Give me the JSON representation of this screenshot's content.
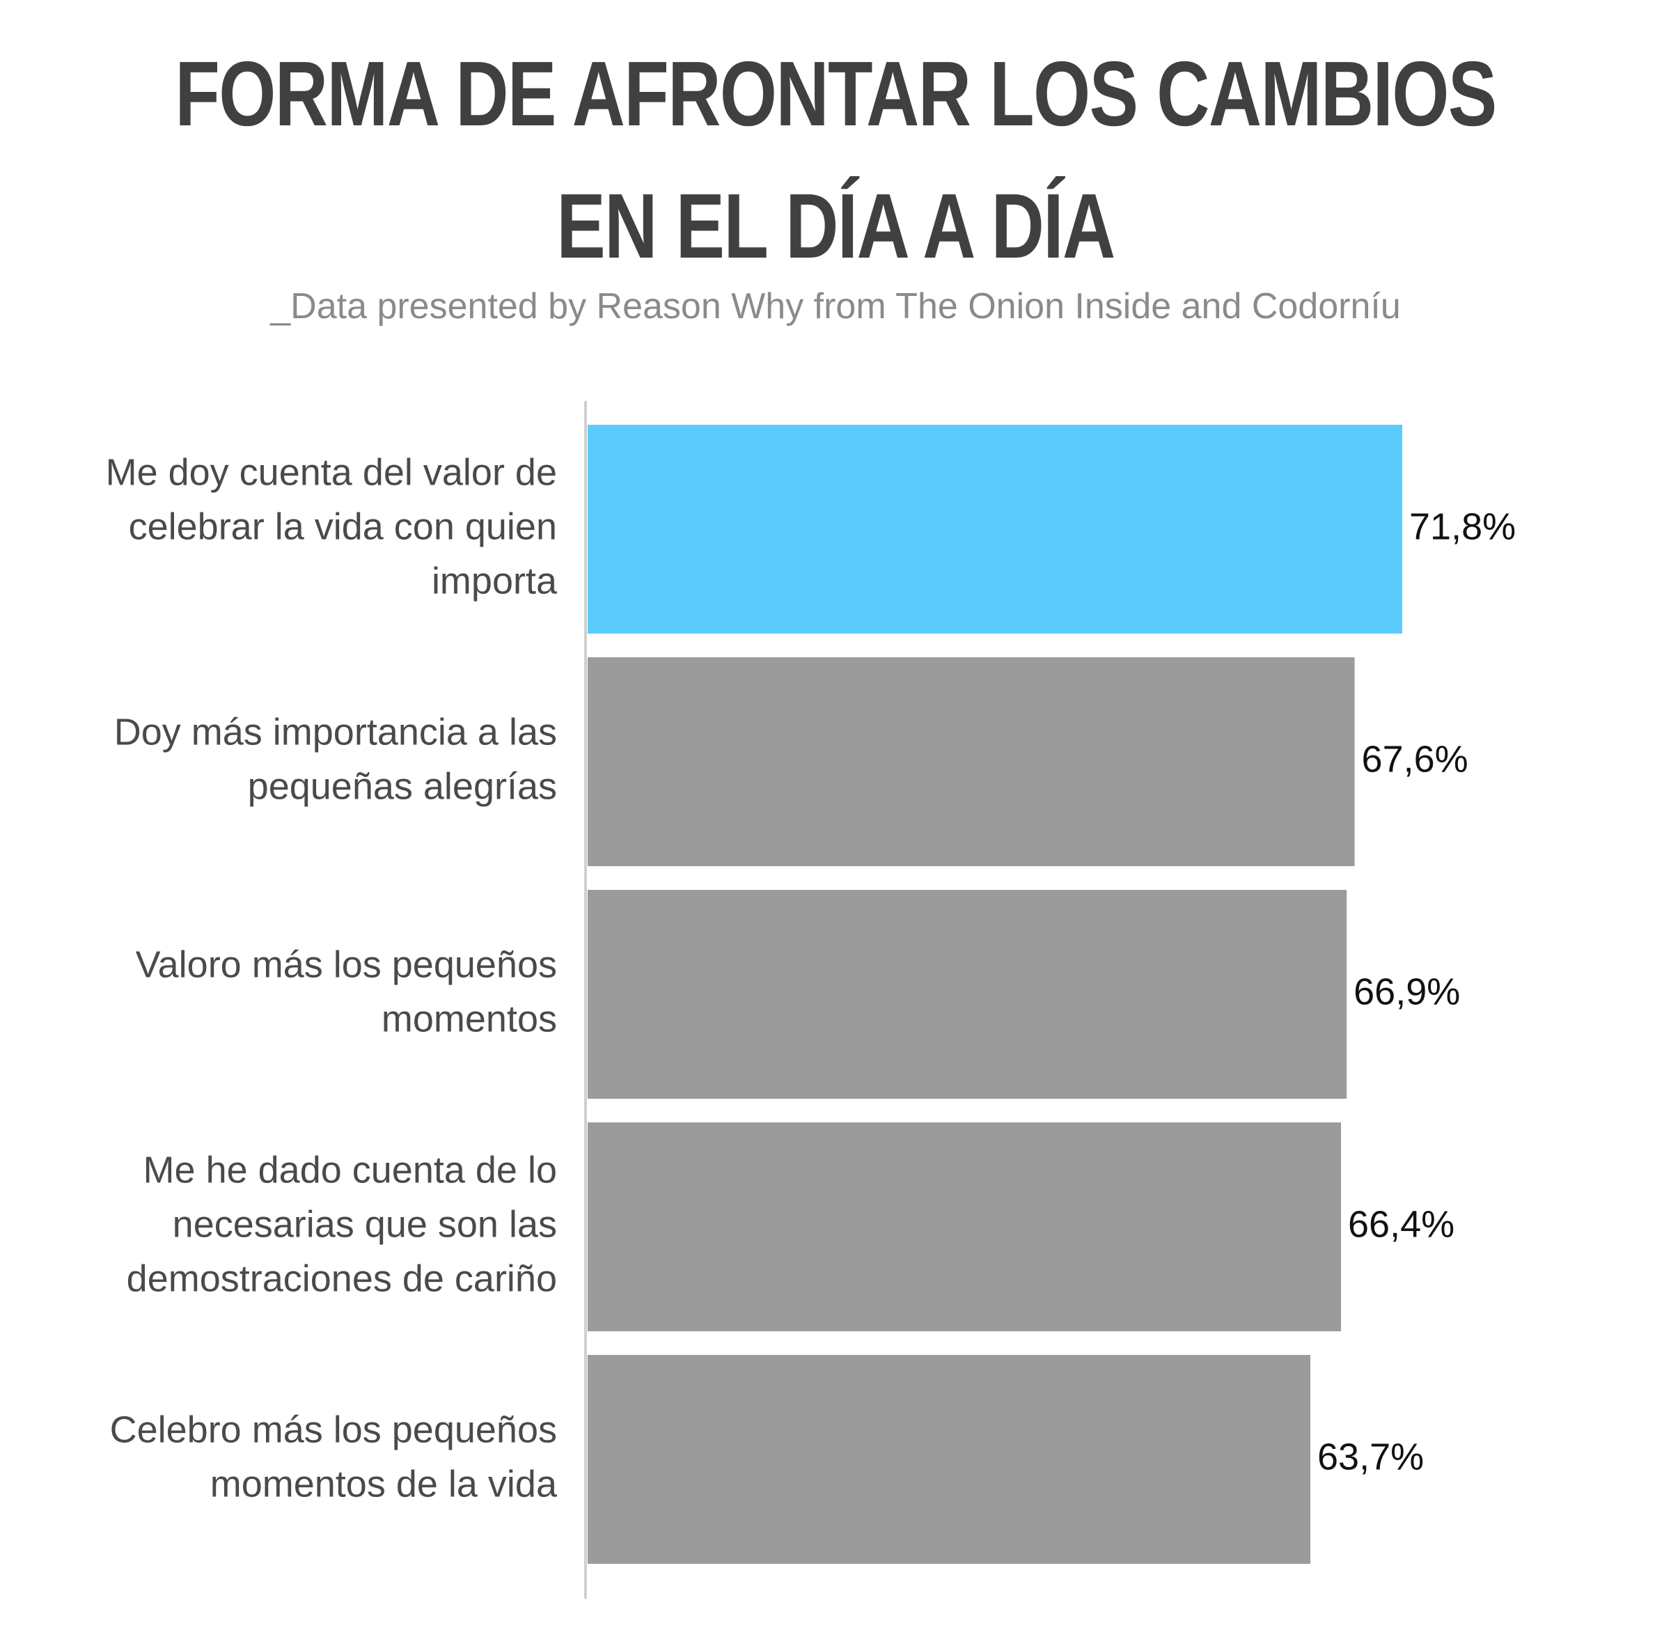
{
  "chart_data": {
    "type": "bar",
    "orientation": "horizontal",
    "title": [
      "FORMA DE AFRONTAR LOS CAMBIOS",
      "EN EL DÍA A DÍA"
    ],
    "subtitle": "_Data presented by Reason Why from The Onion Inside and Codorníu",
    "categories": [
      [
        "Me doy cuenta del valor de",
        "celebrar la vida con quien",
        "importa"
      ],
      [
        "Doy más importancia a las",
        "pequeñas alegrías"
      ],
      [
        "Valoro más los pequeños",
        "momentos"
      ],
      [
        "Me he dado cuenta de lo",
        "necesarias que son las",
        "demostraciones de cariño"
      ],
      [
        "Celebro más los pequeños",
        "momentos de la vida"
      ]
    ],
    "values": [
      71.8,
      67.6,
      66.9,
      66.4,
      63.7
    ],
    "value_labels": [
      "71,8%",
      "67,6%",
      "66,9%",
      "66,4%",
      "63,7%"
    ],
    "highlight_index": 0,
    "colors": {
      "highlight": "#5bcbfc",
      "default": "#9b9b9b",
      "axis": "#d0d0d0"
    },
    "xlim": [
      0,
      100
    ],
    "grid": false,
    "legend": "none"
  }
}
